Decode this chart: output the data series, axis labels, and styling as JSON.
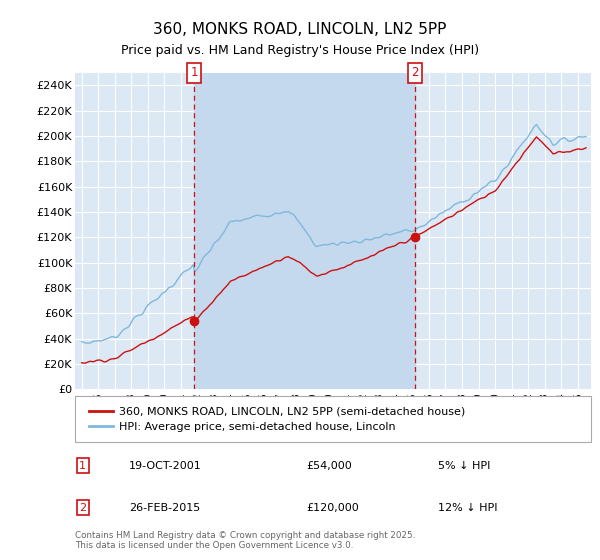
{
  "title": "360, MONKS ROAD, LINCOLN, LN2 5PP",
  "subtitle": "Price paid vs. HM Land Registry's House Price Index (HPI)",
  "ylim": [
    0,
    250000
  ],
  "yticks": [
    0,
    20000,
    40000,
    60000,
    80000,
    100000,
    120000,
    140000,
    160000,
    180000,
    200000,
    220000,
    240000
  ],
  "purchase1_date": "19-OCT-2001",
  "purchase1_price": 54000,
  "purchase2_date": "26-FEB-2015",
  "purchase2_price": 120000,
  "legend_property": "360, MONKS ROAD, LINCOLN, LN2 5PP (semi-detached house)",
  "legend_hpi": "HPI: Average price, semi-detached house, Lincoln",
  "footer": "Contains HM Land Registry data © Crown copyright and database right 2025.\nThis data is licensed under the Open Government Licence v3.0.",
  "bg_color": "#dce9f5",
  "shade_color": "#c5d9ee",
  "grid_color": "#ffffff",
  "hpi_color": "#7fb8dc",
  "property_color": "#cc1111",
  "vline_color": "#cc1111",
  "marker_color": "#cc1111",
  "annotation_box_color": "#cc1111",
  "t1": 2001.8,
  "t2": 2015.15
}
